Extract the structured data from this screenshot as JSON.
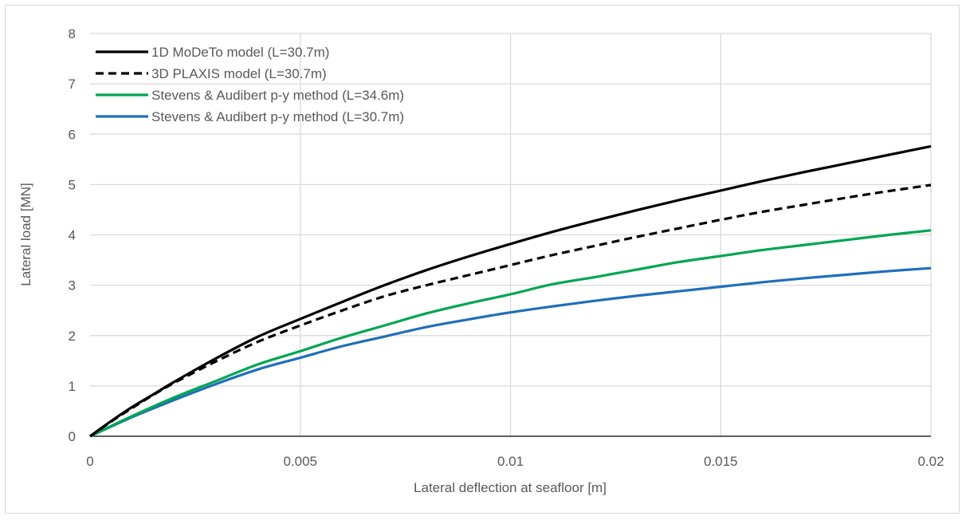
{
  "chart_data": {
    "type": "line",
    "xlabel": "Lateral deflection at seafloor [m]",
    "ylabel": "Lateral load [MN]",
    "xlim": [
      0,
      0.02
    ],
    "ylim": [
      0,
      8
    ],
    "x_ticks": [
      "0",
      "0.005",
      "0.01",
      "0.015",
      "0.02"
    ],
    "y_ticks": [
      "0",
      "1",
      "2",
      "3",
      "4",
      "5",
      "6",
      "7",
      "8"
    ],
    "grid": true,
    "legend_position": "top-left",
    "series": [
      {
        "name": "1D MoDeTo model (L=30.7m)",
        "color": "#000000",
        "dash": "solid",
        "x": [
          0,
          0.0005,
          0.001,
          0.0015,
          0.002,
          0.003,
          0.004,
          0.005,
          0.006,
          0.007,
          0.008,
          0.009,
          0.01,
          0.011,
          0.012,
          0.013,
          0.014,
          0.015,
          0.016,
          0.017,
          0.018,
          0.019,
          0.02
        ],
        "y": [
          0,
          0.3,
          0.58,
          0.83,
          1.08,
          1.55,
          1.98,
          2.33,
          2.67,
          3.0,
          3.3,
          3.57,
          3.82,
          4.06,
          4.28,
          4.49,
          4.69,
          4.88,
          5.07,
          5.25,
          5.42,
          5.59,
          5.76
        ]
      },
      {
        "name": "3D PLAXIS model (L=30.7m)",
        "color": "#000000",
        "dash": "dashed",
        "x": [
          0,
          0.0005,
          0.001,
          0.0015,
          0.002,
          0.003,
          0.004,
          0.005,
          0.006,
          0.007,
          0.008,
          0.009,
          0.01,
          0.011,
          0.012,
          0.013,
          0.014,
          0.015,
          0.016,
          0.017,
          0.018,
          0.019,
          0.02
        ],
        "y": [
          0,
          0.29,
          0.56,
          0.82,
          1.06,
          1.49,
          1.88,
          2.2,
          2.5,
          2.78,
          3.0,
          3.2,
          3.4,
          3.6,
          3.78,
          3.96,
          4.13,
          4.3,
          4.46,
          4.6,
          4.74,
          4.87,
          4.99
        ]
      },
      {
        "name": "Stevens & Audibert p-y method (L=34.6m)",
        "color": "#00a651",
        "dash": "solid",
        "x": [
          0,
          0.001,
          0.002,
          0.003,
          0.004,
          0.005,
          0.006,
          0.007,
          0.008,
          0.009,
          0.01,
          0.011,
          0.012,
          0.013,
          0.014,
          0.015,
          0.016,
          0.017,
          0.018,
          0.019,
          0.02
        ],
        "y": [
          0,
          0.4,
          0.77,
          1.1,
          1.43,
          1.69,
          1.96,
          2.2,
          2.44,
          2.64,
          2.82,
          3.02,
          3.16,
          3.31,
          3.46,
          3.58,
          3.7,
          3.8,
          3.9,
          4.0,
          4.09
        ]
      },
      {
        "name": "Stevens & Audibert p-y method (L=30.7m)",
        "color": "#1f6fba",
        "dash": "solid",
        "x": [
          0,
          0.001,
          0.002,
          0.003,
          0.004,
          0.005,
          0.006,
          0.007,
          0.008,
          0.009,
          0.01,
          0.011,
          0.012,
          0.013,
          0.014,
          0.015,
          0.016,
          0.017,
          0.018,
          0.019,
          0.02
        ],
        "y": [
          0,
          0.38,
          0.72,
          1.04,
          1.33,
          1.56,
          1.79,
          1.98,
          2.17,
          2.32,
          2.46,
          2.58,
          2.69,
          2.79,
          2.88,
          2.97,
          3.06,
          3.14,
          3.21,
          3.28,
          3.34
        ]
      }
    ]
  }
}
